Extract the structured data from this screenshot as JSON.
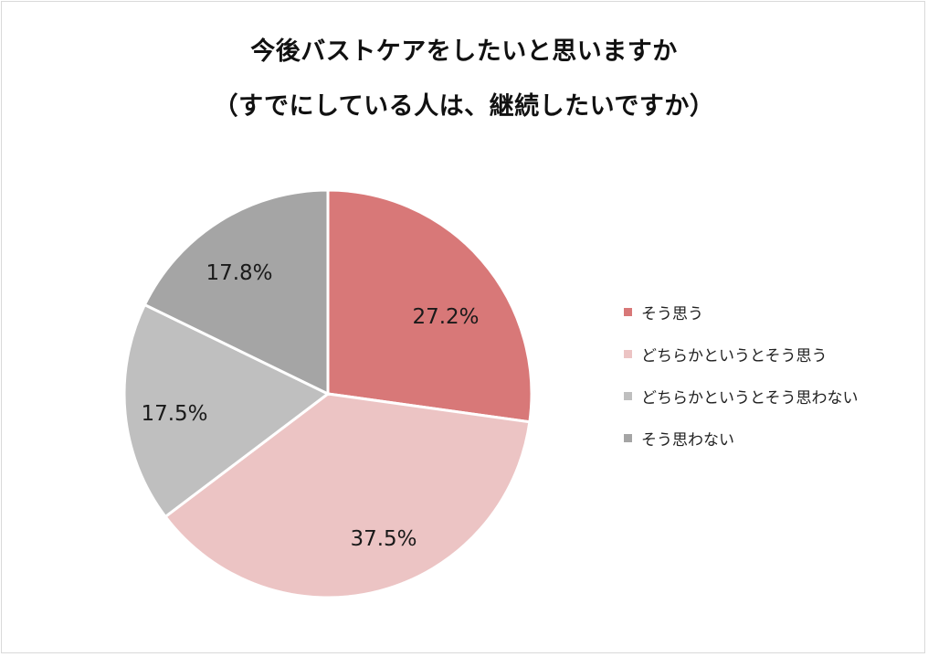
{
  "title": {
    "line1": "今後バストケアをしたいと思いますか",
    "line2": "（すでにしている人は、継続したいですか）"
  },
  "legend": [
    {
      "label": "そう思う",
      "color": "#d87878"
    },
    {
      "label": "どちらかというとそう思う",
      "color": "#ecc4c4"
    },
    {
      "label": "どちらかというとそう思わない",
      "color": "#bfbfbf"
    },
    {
      "label": "そう思わない",
      "color": "#a5a5a5"
    }
  ],
  "labels": [
    "27.2%",
    "37.5%",
    "17.5%",
    "17.8%"
  ],
  "chart_data": {
    "type": "pie",
    "title": "今後バストケアをしたいと思いますか（すでにしている人は、継続したいですか）",
    "categories": [
      "そう思う",
      "どちらかというとそう思う",
      "どちらかというとそう思わない",
      "そう思わない"
    ],
    "values": [
      27.2,
      37.5,
      17.5,
      17.8
    ],
    "unit": "%",
    "colors": [
      "#d87878",
      "#ecc4c4",
      "#bfbfbf",
      "#a5a5a5"
    ],
    "start_angle": "12 o'clock, clockwise",
    "legend_position": "right",
    "data_labels": true
  }
}
